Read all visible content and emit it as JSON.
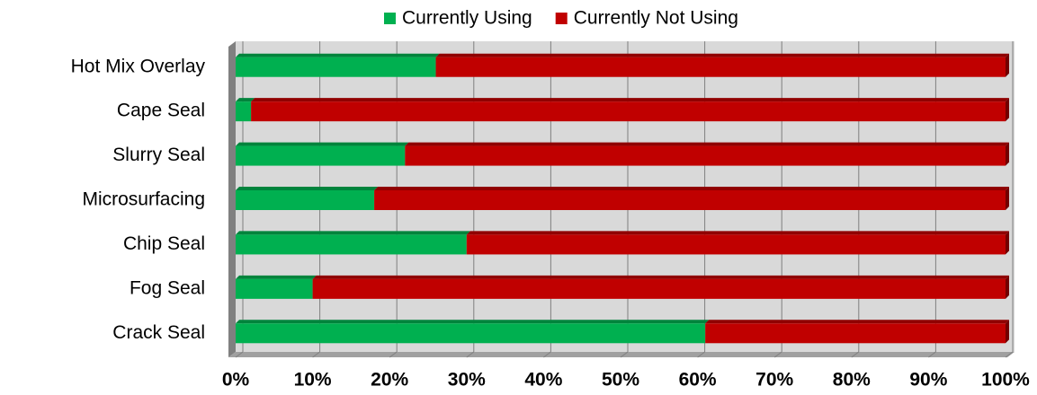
{
  "chart_data": {
    "type": "bar",
    "orientation": "horizontal",
    "stacked": true,
    "categories": [
      "Hot Mix Overlay",
      "Cape Seal",
      "Slurry Seal",
      "Microsurfacing",
      "Chip Seal",
      "Fog Seal",
      "Crack Seal"
    ],
    "series": [
      {
        "name": "Currently Using",
        "color": "#00b050",
        "values": [
          26,
          2,
          22,
          18,
          30,
          10,
          61
        ]
      },
      {
        "name": "Currently Not Using",
        "color": "#c00000",
        "values": [
          74,
          98,
          78,
          82,
          70,
          90,
          39
        ]
      }
    ],
    "xlim": [
      0,
      100
    ],
    "xticks": [
      {
        "value": 0,
        "label": "0%"
      },
      {
        "value": 10,
        "label": "10%"
      },
      {
        "value": 20,
        "label": "20%"
      },
      {
        "value": 30,
        "label": "30%"
      },
      {
        "value": 40,
        "label": "40%"
      },
      {
        "value": 50,
        "label": "50%"
      },
      {
        "value": 60,
        "label": "60%"
      },
      {
        "value": 70,
        "label": "70%"
      },
      {
        "value": 80,
        "label": "80%"
      },
      {
        "value": 90,
        "label": "90%"
      },
      {
        "value": 100,
        "label": "100%"
      }
    ],
    "grid": true,
    "legend": "top"
  }
}
